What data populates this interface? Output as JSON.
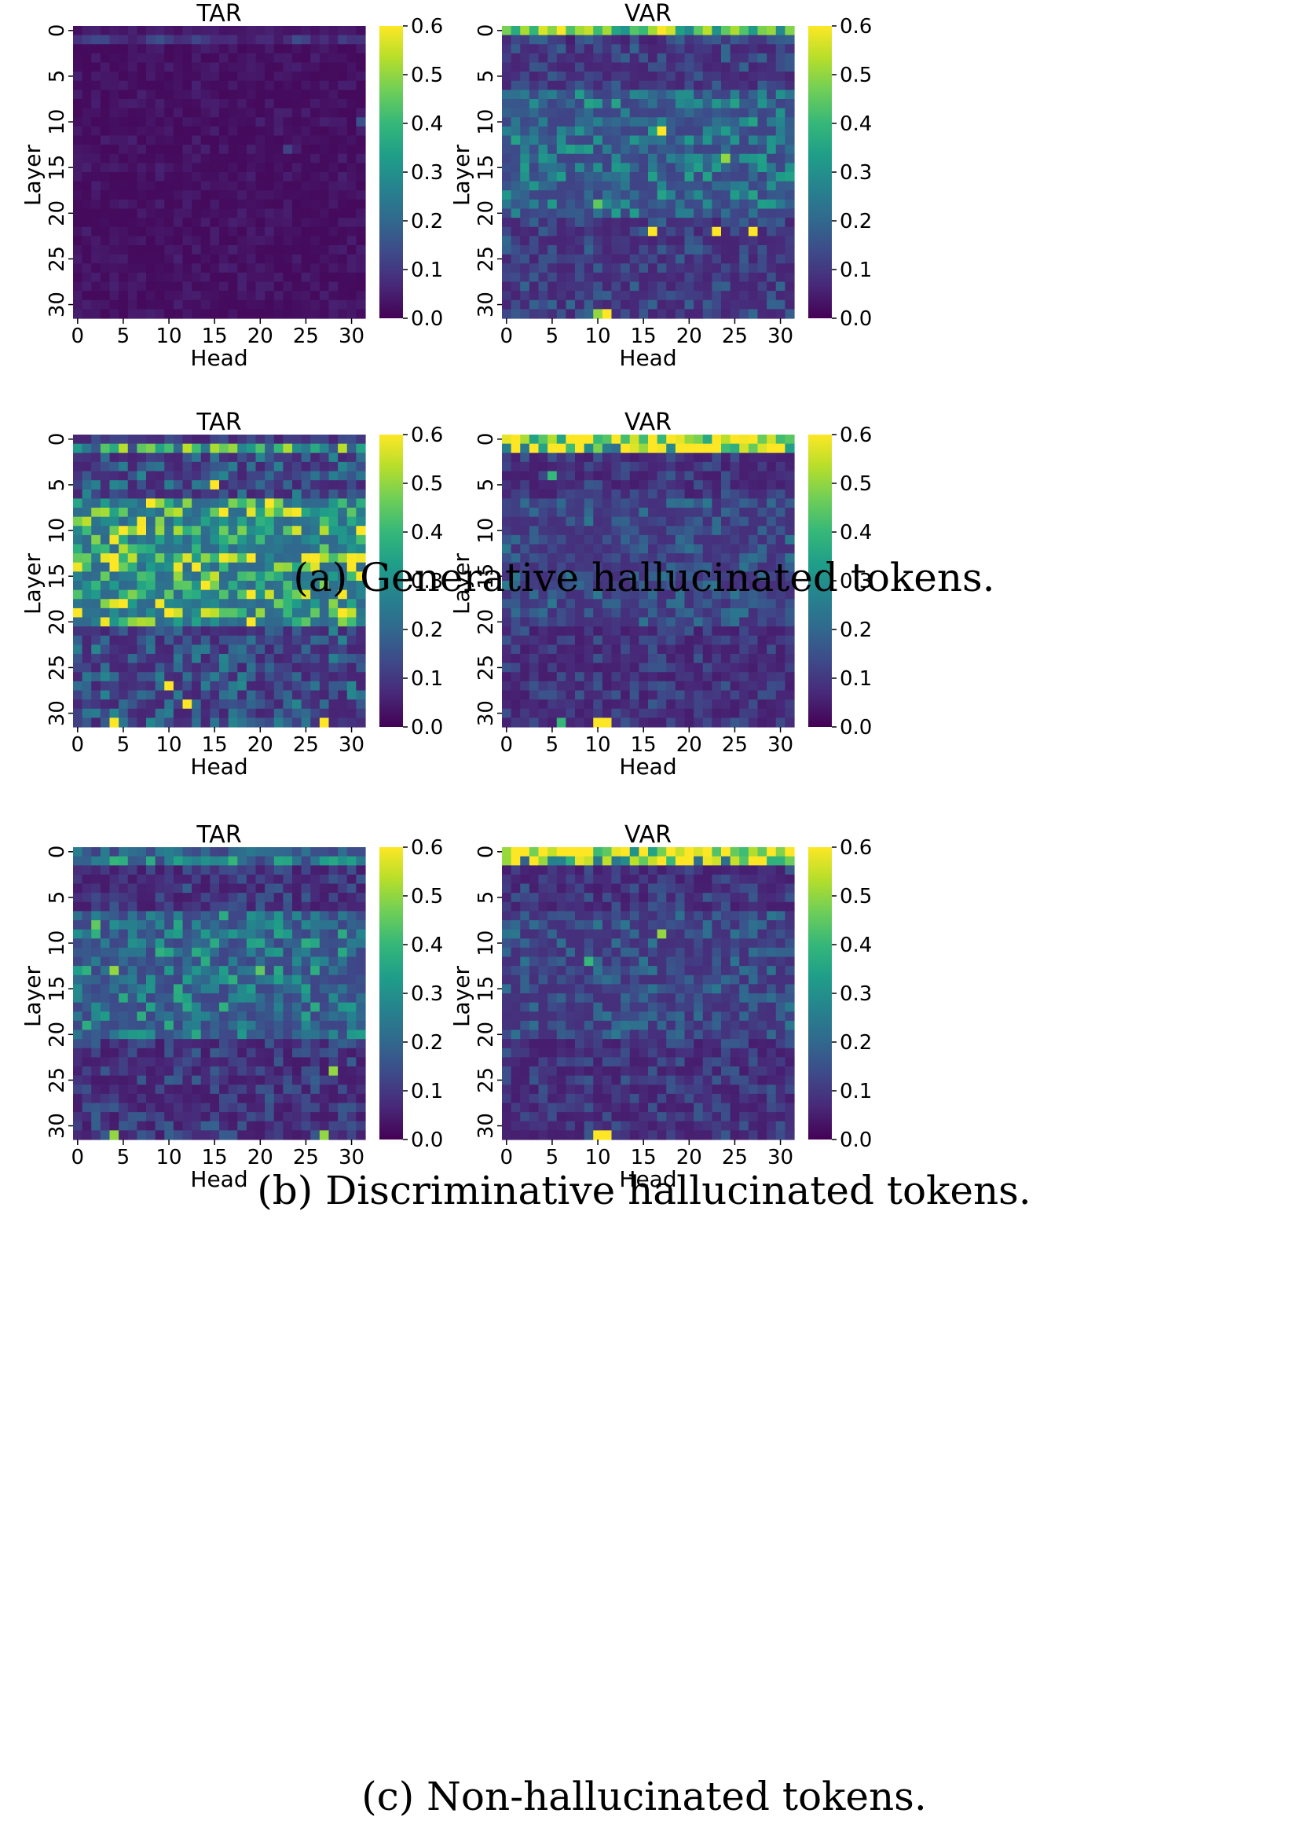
{
  "figure": {
    "captions": [
      "(a) Generative hallucinated tokens.",
      "(b) Discriminative hallucinated tokens.",
      "(c) Non-hallucinated tokens."
    ]
  },
  "colormap": [
    "#440154",
    "#482878",
    "#3e4989",
    "#31688e",
    "#26828e",
    "#1f9e89",
    "#35b779",
    "#6ece58",
    "#b5de2b",
    "#fde725"
  ],
  "chart_data": [
    {
      "type": "heatmap",
      "row": "a",
      "title": "TAR",
      "xlabel": "Head",
      "ylabel": "Layer",
      "xticks": [
        "0",
        "5",
        "10",
        "15",
        "20",
        "25",
        "30"
      ],
      "yticks": [
        "0",
        "5",
        "10",
        "15",
        "20",
        "25",
        "30"
      ],
      "colorbar_ticks": [
        "0.0",
        "0.1",
        "0.2",
        "0.3",
        "0.4",
        "0.5",
        "0.6"
      ],
      "vmin": 0,
      "vmax": 0.6,
      "grid_size": [
        32,
        32
      ],
      "row0_mean": 0.04,
      "row1_mean": 0.1,
      "body_mean": 0.03,
      "body_spread": 0.04,
      "mid_boost": 0.0,
      "peak_cells": [
        [
          10,
          31,
          0.15
        ],
        [
          13,
          23,
          0.12
        ]
      ]
    },
    {
      "type": "heatmap",
      "row": "a",
      "title": "VAR",
      "xlabel": "Head",
      "ylabel": "Layer",
      "xticks": [
        "0",
        "5",
        "10",
        "15",
        "20",
        "25",
        "30"
      ],
      "yticks": [
        "0",
        "5",
        "10",
        "15",
        "20",
        "25",
        "30"
      ],
      "colorbar_ticks": [
        "0.0",
        "0.1",
        "0.2",
        "0.3",
        "0.4",
        "0.5",
        "0.6"
      ],
      "vmin": 0,
      "vmax": 0.6,
      "grid_size": [
        32,
        32
      ],
      "row0_mean": 0.45,
      "row1_mean": 0.12,
      "body_mean": 0.12,
      "body_spread": 0.14,
      "mid_boost": 0.06,
      "peak_cells": [
        [
          11,
          17,
          0.6
        ],
        [
          22,
          16,
          0.6
        ],
        [
          22,
          23,
          0.6
        ],
        [
          22,
          27,
          0.6
        ],
        [
          31,
          11,
          0.6
        ],
        [
          31,
          10,
          0.5
        ],
        [
          14,
          24,
          0.5
        ],
        [
          19,
          10,
          0.45
        ]
      ]
    },
    {
      "type": "heatmap",
      "row": "b",
      "title": "TAR",
      "xlabel": "Head",
      "ylabel": "Layer",
      "xticks": [
        "0",
        "5",
        "10",
        "15",
        "20",
        "25",
        "30"
      ],
      "yticks": [
        "0",
        "5",
        "10",
        "15",
        "20",
        "25",
        "30"
      ],
      "colorbar_ticks": [
        "0.0",
        "0.1",
        "0.2",
        "0.3",
        "0.4",
        "0.5",
        "0.6"
      ],
      "vmin": 0,
      "vmax": 0.6,
      "grid_size": [
        32,
        32
      ],
      "row0_mean": 0.1,
      "row1_mean": 0.35,
      "body_mean": 0.12,
      "body_spread": 0.22,
      "mid_boost": 0.14,
      "peak_cells": [
        [
          5,
          15,
          0.6
        ],
        [
          13,
          4,
          0.6
        ],
        [
          14,
          13,
          0.6
        ],
        [
          15,
          31,
          0.6
        ],
        [
          16,
          14,
          0.6
        ],
        [
          27,
          10,
          0.6
        ],
        [
          29,
          12,
          0.6
        ],
        [
          31,
          4,
          0.6
        ],
        [
          31,
          27,
          0.6
        ]
      ]
    },
    {
      "type": "heatmap",
      "row": "b",
      "title": "VAR",
      "xlabel": "Head",
      "ylabel": "Layer",
      "xticks": [
        "0",
        "5",
        "10",
        "15",
        "20",
        "25",
        "30"
      ],
      "yticks": [
        "0",
        "5",
        "10",
        "15",
        "20",
        "25",
        "30"
      ],
      "colorbar_ticks": [
        "0.0",
        "0.1",
        "0.2",
        "0.3",
        "0.4",
        "0.5",
        "0.6"
      ],
      "vmin": 0,
      "vmax": 0.6,
      "grid_size": [
        32,
        32
      ],
      "row0_mean": 0.55,
      "row1_mean": 0.5,
      "body_mean": 0.1,
      "body_spread": 0.12,
      "mid_boost": 0.03,
      "peak_cells": [
        [
          31,
          10,
          0.6
        ],
        [
          31,
          11,
          0.6
        ],
        [
          31,
          6,
          0.4
        ],
        [
          4,
          5,
          0.4
        ]
      ]
    },
    {
      "type": "heatmap",
      "row": "c",
      "title": "TAR",
      "xlabel": "Head",
      "ylabel": "Layer",
      "xticks": [
        "0",
        "5",
        "10",
        "15",
        "20",
        "25",
        "30"
      ],
      "yticks": [
        "0",
        "5",
        "10",
        "15",
        "20",
        "25",
        "30"
      ],
      "colorbar_ticks": [
        "0.0",
        "0.1",
        "0.2",
        "0.3",
        "0.4",
        "0.5",
        "0.6"
      ],
      "vmin": 0,
      "vmax": 0.6,
      "grid_size": [
        32,
        32
      ],
      "row0_mean": 0.18,
      "row1_mean": 0.25,
      "body_mean": 0.09,
      "body_spread": 0.14,
      "mid_boost": 0.08,
      "peak_cells": [
        [
          13,
          4,
          0.5
        ],
        [
          13,
          20,
          0.45
        ],
        [
          31,
          4,
          0.5
        ],
        [
          31,
          27,
          0.5
        ],
        [
          24,
          28,
          0.5
        ],
        [
          8,
          2,
          0.45
        ]
      ]
    },
    {
      "type": "heatmap",
      "row": "c",
      "title": "VAR",
      "xlabel": "Head",
      "ylabel": "Layer",
      "xticks": [
        "0",
        "5",
        "10",
        "15",
        "20",
        "25",
        "30"
      ],
      "yticks": [
        "0",
        "5",
        "10",
        "15",
        "20",
        "25",
        "30"
      ],
      "colorbar_ticks": [
        "0.0",
        "0.1",
        "0.2",
        "0.3",
        "0.4",
        "0.5",
        "0.6"
      ],
      "vmin": 0,
      "vmax": 0.6,
      "grid_size": [
        32,
        32
      ],
      "row0_mean": 0.55,
      "row1_mean": 0.45,
      "body_mean": 0.1,
      "body_spread": 0.12,
      "mid_boost": 0.03,
      "peak_cells": [
        [
          31,
          10,
          0.6
        ],
        [
          31,
          11,
          0.6
        ],
        [
          9,
          17,
          0.5
        ],
        [
          12,
          9,
          0.4
        ]
      ]
    }
  ]
}
